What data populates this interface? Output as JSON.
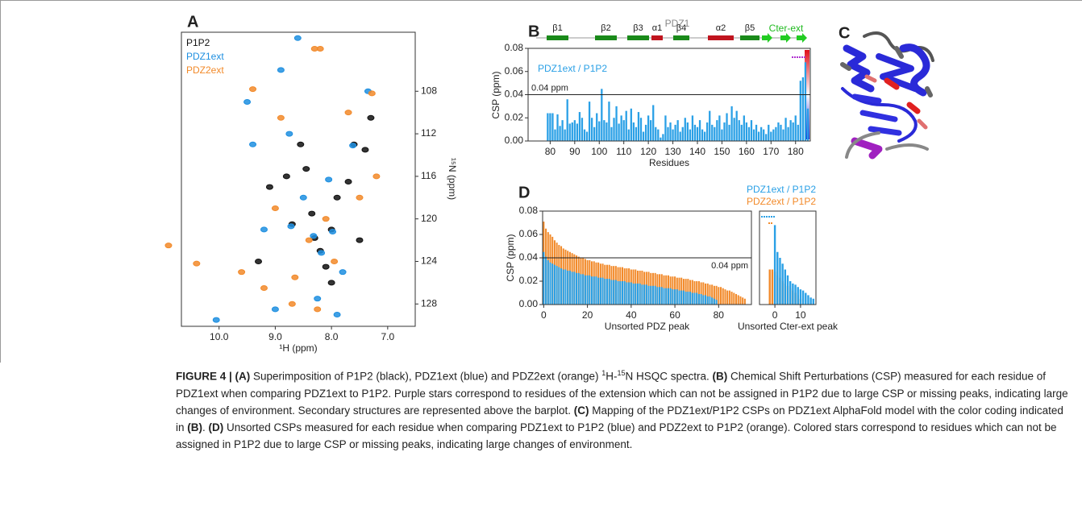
{
  "chart_data": [
    {
      "type": "scatter",
      "panel": "A",
      "xlabel": "¹H (ppm)",
      "ylabel": "¹⁵N (ppm)",
      "xlim": [
        10.67,
        6.51
      ],
      "ylim": [
        130.1,
        102.45
      ],
      "yaxis_side": "right",
      "legend": "top-left",
      "xticks": [
        {
          "value": 10,
          "label": "10.0"
        },
        {
          "value": 9,
          "label": "9.0"
        },
        {
          "value": 8,
          "label": "8.0"
        },
        {
          "value": 7,
          "label": "7.0"
        }
      ],
      "yticks": [
        108,
        112,
        116,
        120,
        124,
        128
      ],
      "series": [
        {
          "name": "P1P2",
          "color": "#111111",
          "x": [
            8.7,
            8.3,
            8.2,
            8.0,
            7.6,
            7.4,
            8.8,
            8.45,
            7.9,
            8.1,
            7.3,
            8.55,
            9.1,
            8.0,
            7.7,
            8.35,
            7.5,
            9.3
          ],
          "values": [
            120.5,
            121.8,
            123,
            121,
            113,
            113.5,
            116,
            115.3,
            118,
            124.5,
            110.5,
            113,
            117,
            126,
            116.5,
            119.5,
            122,
            124
          ]
        },
        {
          "name": "PDZ1ext",
          "color": "#1e8fe0",
          "x": [
            8.72,
            8.32,
            8.18,
            7.98,
            7.62,
            8.6,
            10.05,
            9.5,
            8.9,
            7.35,
            9.0,
            8.75,
            8.25,
            7.8,
            9.2,
            8.5,
            7.9,
            8.05,
            9.4
          ],
          "values": [
            120.7,
            121.6,
            123.2,
            121.2,
            113.1,
            103,
            129.5,
            109,
            106,
            108,
            128.5,
            112,
            127.5,
            125,
            121,
            118,
            129,
            116.3,
            113
          ]
        },
        {
          "name": "PDZ2ext",
          "color": "#f28a2a",
          "x": [
            10.9,
            10.4,
            8.3,
            8.2,
            9.4,
            7.28,
            9.6,
            8.7,
            7.7,
            8.4,
            8.1,
            7.95,
            9.0,
            8.65,
            7.5,
            8.9,
            7.2,
            8.25,
            9.2
          ],
          "values": [
            122.5,
            124.2,
            104,
            104,
            107.8,
            108.2,
            125,
            128,
            110,
            122,
            120,
            124,
            119,
            125.5,
            118,
            110.5,
            116,
            128.5,
            126.5
          ]
        }
      ]
    },
    {
      "type": "bar",
      "panel": "B",
      "xlabel": "Residues",
      "ylabel": "CSP (ppm)",
      "color": "#2aa0e6",
      "legend_text": "PDZ1ext / P1P2",
      "domain_label": "PDZ1",
      "extension_label": "Cter-ext",
      "secondary_structure": [
        {
          "label": "β1",
          "color": "#1a8a1a"
        },
        {
          "label": "β2",
          "color": "#1a8a1a"
        },
        {
          "label": "β3",
          "color": "#1a8a1a"
        },
        {
          "label": "α1",
          "color": "#c0141e"
        },
        {
          "label": "β4",
          "color": "#1a8a1a"
        },
        {
          "label": "α2",
          "color": "#c0141e"
        },
        {
          "label": "β5",
          "color": "#1a8a1a"
        }
      ],
      "xlim": [
        71,
        186
      ],
      "ylim": [
        0,
        0.08
      ],
      "xticks": [
        80,
        90,
        100,
        110,
        120,
        130,
        140,
        150,
        160,
        170,
        180
      ],
      "yticks": [
        {
          "value": 0,
          "label": "0.00"
        },
        {
          "value": 0.02,
          "label": "0.02"
        },
        {
          "value": 0.04,
          "label": "0.04"
        },
        {
          "value": 0.06,
          "label": "0.06"
        },
        {
          "value": 0.08,
          "label": "0.08"
        }
      ],
      "reference_line": {
        "value": 0.04,
        "label": "0.04 ppm"
      },
      "x": [
        79,
        80,
        81,
        82,
        83,
        84,
        85,
        86,
        87,
        88,
        89,
        90,
        91,
        92,
        93,
        94,
        95,
        96,
        97,
        98,
        99,
        100,
        101,
        102,
        103,
        104,
        105,
        106,
        107,
        108,
        109,
        110,
        111,
        112,
        113,
        114,
        115,
        116,
        117,
        118,
        119,
        120,
        121,
        122,
        123,
        124,
        125,
        126,
        127,
        128,
        129,
        130,
        131,
        132,
        133,
        134,
        135,
        136,
        137,
        138,
        139,
        140,
        141,
        142,
        143,
        144,
        145,
        146,
        147,
        148,
        149,
        150,
        151,
        152,
        153,
        154,
        155,
        156,
        157,
        158,
        159,
        160,
        161,
        162,
        163,
        164,
        165,
        166,
        167,
        168,
        169,
        170,
        171,
        172,
        173,
        174,
        175,
        176,
        177,
        178,
        179,
        180,
        181,
        182,
        183,
        184,
        185
      ],
      "values": [
        0.024,
        0.024,
        0.024,
        0.01,
        0.023,
        0.013,
        0.018,
        0.01,
        0.036,
        0.015,
        0.016,
        0.018,
        0.015,
        0.025,
        0.02,
        0.01,
        0.008,
        0.034,
        0.02,
        0.012,
        0.024,
        0.017,
        0.045,
        0.018,
        0.016,
        0.034,
        0.012,
        0.02,
        0.03,
        0.015,
        0.022,
        0.018,
        0.026,
        0.01,
        0.028,
        0.016,
        0.012,
        0.025,
        0.02,
        0.008,
        0.014,
        0.022,
        0.018,
        0.031,
        0.012,
        0.01,
        0.003,
        0.006,
        0.022,
        0.012,
        0.016,
        0.01,
        0.014,
        0.018,
        0.008,
        0.012,
        0.02,
        0.016,
        0.01,
        0.022,
        0.014,
        0.012,
        0.018,
        0.01,
        0.008,
        0.016,
        0.026,
        0.014,
        0.012,
        0.018,
        0.022,
        0.01,
        0.016,
        0.024,
        0.014,
        0.03,
        0.02,
        0.026,
        0.018,
        0.014,
        0.022,
        0.016,
        0.012,
        0.018,
        0.01,
        0.014,
        0.008,
        0.012,
        0.01,
        0.006,
        0.014,
        0.008,
        0.01,
        0.012,
        0.016,
        0.014,
        0.01,
        0.02,
        0.012,
        0.018,
        0.016,
        0.022,
        0.014,
        0.052,
        0.055,
        0.068,
        0.028
      ]
    },
    {
      "type": "bar",
      "panel": "D",
      "xlabel": "Unsorted PDZ peak",
      "ylabel": "CSP (ppm)",
      "legend": "top-right",
      "xlim": [
        -0.5,
        95
      ],
      "ylim": [
        0,
        0.08
      ],
      "xticks": [
        0,
        20,
        40,
        60,
        80
      ],
      "yticks": [
        {
          "value": 0,
          "label": "0.00"
        },
        {
          "value": 0.02,
          "label": "0.02"
        },
        {
          "value": 0.04,
          "label": "0.04"
        },
        {
          "value": 0.06,
          "label": "0.06"
        },
        {
          "value": 0.08,
          "label": "0.08"
        }
      ],
      "reference_line": {
        "value": 0.04,
        "label": "0.04 ppm"
      },
      "series": [
        {
          "name": "PDZ2ext / P1P2",
          "color": "#f28a2a",
          "values": [
            0.071,
            0.065,
            0.062,
            0.06,
            0.058,
            0.055,
            0.053,
            0.051,
            0.05,
            0.048,
            0.047,
            0.046,
            0.045,
            0.044,
            0.043,
            0.042,
            0.041,
            0.04,
            0.04,
            0.039,
            0.038,
            0.038,
            0.037,
            0.037,
            0.036,
            0.036,
            0.035,
            0.035,
            0.034,
            0.034,
            0.034,
            0.033,
            0.033,
            0.033,
            0.032,
            0.032,
            0.032,
            0.031,
            0.031,
            0.031,
            0.03,
            0.03,
            0.03,
            0.029,
            0.029,
            0.029,
            0.028,
            0.028,
            0.028,
            0.027,
            0.027,
            0.027,
            0.026,
            0.026,
            0.026,
            0.025,
            0.025,
            0.025,
            0.024,
            0.024,
            0.024,
            0.023,
            0.023,
            0.023,
            0.022,
            0.022,
            0.022,
            0.021,
            0.021,
            0.02,
            0.02,
            0.02,
            0.019,
            0.019,
            0.018,
            0.018,
            0.017,
            0.017,
            0.016,
            0.016,
            0.015,
            0.015,
            0.014,
            0.013,
            0.012,
            0.012,
            0.011,
            0.01,
            0.009,
            0.008,
            0.007,
            0.006,
            0.005
          ]
        },
        {
          "name": "PDZ1ext / P1P2",
          "color": "#2aa0e6",
          "values": [
            0.045,
            0.041,
            0.038,
            0.036,
            0.035,
            0.034,
            0.033,
            0.032,
            0.031,
            0.03,
            0.03,
            0.029,
            0.029,
            0.028,
            0.028,
            0.027,
            0.027,
            0.026,
            0.026,
            0.025,
            0.025,
            0.025,
            0.024,
            0.024,
            0.024,
            0.023,
            0.023,
            0.023,
            0.022,
            0.022,
            0.022,
            0.021,
            0.021,
            0.021,
            0.02,
            0.02,
            0.02,
            0.02,
            0.019,
            0.019,
            0.019,
            0.018,
            0.018,
            0.018,
            0.018,
            0.017,
            0.017,
            0.017,
            0.016,
            0.016,
            0.016,
            0.016,
            0.015,
            0.015,
            0.015,
            0.014,
            0.014,
            0.014,
            0.014,
            0.013,
            0.013,
            0.013,
            0.012,
            0.012,
            0.012,
            0.011,
            0.011,
            0.011,
            0.01,
            0.01,
            0.01,
            0.009,
            0.009,
            0.008,
            0.008,
            0.007,
            0.007,
            0.006,
            0.005,
            0.004
          ]
        }
      ]
    },
    {
      "type": "bar",
      "xlabel": "Unsorted Cter-ext peak",
      "xlim": [
        -6,
        16
      ],
      "ylim": [
        0,
        0.08
      ],
      "xticks": [
        0,
        10
      ],
      "series": [
        {
          "color": "#f28a2a",
          "x": [
            -2,
            -1,
            0,
            1,
            2,
            3,
            4,
            5,
            6,
            7,
            8,
            9,
            10
          ],
          "values": [
            0.03,
            0.03,
            0.028,
            0.025,
            0.023,
            0.02,
            0.018,
            0.016,
            0.014,
            0.012,
            0.01,
            0.008,
            0.005
          ]
        },
        {
          "color": "#2aa0e6",
          "x": [
            0,
            1,
            2,
            3,
            4,
            5,
            6,
            7,
            8,
            9,
            10,
            11,
            12,
            13,
            14,
            15
          ],
          "values": [
            0.068,
            0.045,
            0.04,
            0.035,
            0.03,
            0.025,
            0.02,
            0.018,
            0.017,
            0.015,
            0.013,
            0.012,
            0.01,
            0.008,
            0.006,
            0.005
          ]
        }
      ]
    }
  ],
  "structure_panel": {
    "label": "C"
  },
  "caption": [
    {
      "text": "FIGURE 4 | (A)",
      "style": "bold"
    },
    {
      "text": " Superimposition of P1P2 (black), PDZ1ext (blue) and PDZ2ext (orange) "
    },
    {
      "text": "1",
      "style": "sup"
    },
    {
      "text": "H-"
    },
    {
      "text": "15",
      "style": "sup"
    },
    {
      "text": "N HSQC spectra. "
    },
    {
      "text": "(B)",
      "style": "bold"
    },
    {
      "text": " Chemical Shift Perturbations (CSP) measured for each residue of PDZ1ext when comparing PDZ1ext to P1P2. Purple stars correspond to residues of the extension which can not be assigned in P1P2 due to large CSP or missing peaks, indicating large changes of environment. Secondary structures are represented above the barplot. "
    },
    {
      "text": "(C)",
      "style": "bold"
    },
    {
      "text": " Mapping of the PDZ1ext/P1P2 CSPs on PDZ1ext AlphaFold model with the color coding indicated in "
    },
    {
      "text": "(B)",
      "style": "bold"
    },
    {
      "text": ". "
    },
    {
      "text": "(D)",
      "style": "bold"
    },
    {
      "text": " Unsorted CSPs measured for each residue when comparing PDZ1ext to P1P2 (blue) and PDZ2ext to P1P2 (orange). Colored stars correspond to residues which can not be assigned in P1P2 due to large CSP or missing peaks, indicating large changes of environment."
    }
  ]
}
